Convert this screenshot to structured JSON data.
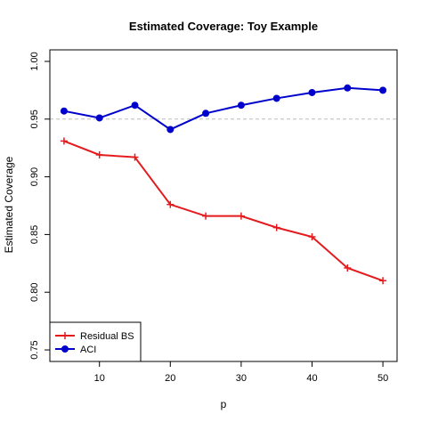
{
  "chart_data": {
    "type": "line",
    "title": "Estimated Coverage: Toy Example",
    "xlabel": "p",
    "ylabel": "Estimated Coverage",
    "xlim": [
      3,
      52
    ],
    "ylim": [
      0.74,
      1.01
    ],
    "x_ticks": [
      10,
      20,
      30,
      40,
      50
    ],
    "y_ticks": [
      0.75,
      0.8,
      0.85,
      0.9,
      0.95,
      1.0
    ],
    "y_tick_labels": [
      "0.75",
      "0.80",
      "0.85",
      "0.90",
      "0.95",
      "1.00"
    ],
    "reference_line": {
      "y": 0.95,
      "style": "dashed",
      "color": "#bbbbbb"
    },
    "grid": false,
    "legend_position": "bottom-left",
    "x": [
      5,
      10,
      15,
      20,
      25,
      30,
      35,
      40,
      45,
      50
    ],
    "series": [
      {
        "name": "Residual BS",
        "color": "#e41a1c",
        "marker": "plus",
        "values": [
          0.931,
          0.919,
          0.917,
          0.876,
          0.866,
          0.866,
          0.856,
          0.848,
          0.821,
          0.81
        ]
      },
      {
        "name": "ACI",
        "color": "#0000cc",
        "marker": "circle",
        "values": [
          0.957,
          0.951,
          0.962,
          0.941,
          0.955,
          0.962,
          0.968,
          0.973,
          0.977,
          0.975
        ]
      }
    ]
  }
}
